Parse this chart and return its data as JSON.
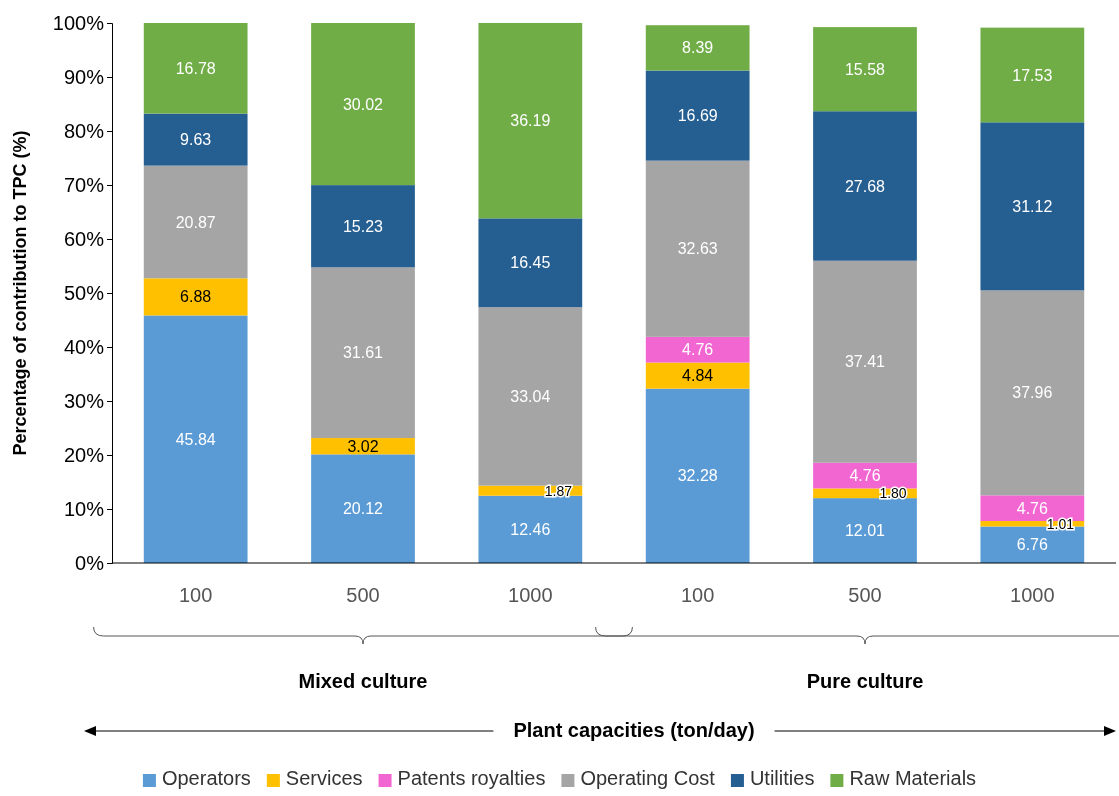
{
  "chart_data": {
    "type": "bar",
    "stacked": true,
    "ylabel": "Percentage of contribution to TPC (%)",
    "categories": [
      "100",
      "500",
      "1000",
      "100",
      "500",
      "1000"
    ],
    "ylim": [
      0,
      100
    ],
    "yticks": [
      {
        "value": 0,
        "label": "0%"
      },
      {
        "value": 10,
        "label": "10%"
      },
      {
        "value": 20,
        "label": "20%"
      },
      {
        "value": 30,
        "label": "30%"
      },
      {
        "value": 40,
        "label": "40%"
      },
      {
        "value": 50,
        "label": "50%"
      },
      {
        "value": 60,
        "label": "60%"
      },
      {
        "value": 70,
        "label": "70%"
      },
      {
        "value": 80,
        "label": "80%"
      },
      {
        "value": 90,
        "label": "90%"
      },
      {
        "value": 100,
        "label": "100%"
      }
    ],
    "legend": "bottom",
    "annotations": [
      "Mixed culture",
      "Pure culture",
      "Plant capacities (ton/day)"
    ],
    "series": [
      {
        "name": "Operators",
        "color": "#5b9bd5",
        "values": [
          45.84,
          20.12,
          12.46,
          32.28,
          12.01,
          6.76
        ],
        "value_labels": [
          "45.84",
          "20.12",
          "12.46",
          "32.28",
          "12.01",
          "6.76"
        ]
      },
      {
        "name": "Services",
        "color": "#ffc000",
        "values": [
          6.88,
          3.02,
          1.87,
          4.84,
          1.8,
          1.01
        ],
        "value_labels": [
          "6.88",
          "3.02",
          "1.87",
          "4.84",
          "1.80",
          "1.01"
        ]
      },
      {
        "name": "Patents royalties",
        "color": "#f266d2",
        "values": [
          null,
          null,
          null,
          4.76,
          4.76,
          4.76
        ],
        "value_labels": [
          null,
          null,
          null,
          "4.76",
          "4.76",
          "4.76"
        ]
      },
      {
        "name": "Operating Cost",
        "color": "#a5a5a5",
        "values": [
          20.87,
          31.61,
          33.04,
          32.63,
          37.41,
          37.96
        ],
        "value_labels": [
          "20.87",
          "31.61",
          "33.04",
          "32.63",
          "37.41",
          "37.96"
        ]
      },
      {
        "name": "Utilities",
        "color": "#255e91",
        "values": [
          9.63,
          15.23,
          16.45,
          16.69,
          27.68,
          31.12
        ],
        "value_labels": [
          "9.63",
          "15.23",
          "16.45",
          "16.69",
          "27.68",
          "31.12"
        ]
      },
      {
        "name": "Raw Materials",
        "color": "#70ad47",
        "values": [
          16.78,
          30.02,
          36.19,
          8.39,
          15.58,
          17.53
        ],
        "value_labels": [
          "16.78",
          "30.02",
          "36.19",
          "8.39",
          "15.58",
          "17.53"
        ]
      }
    ]
  }
}
